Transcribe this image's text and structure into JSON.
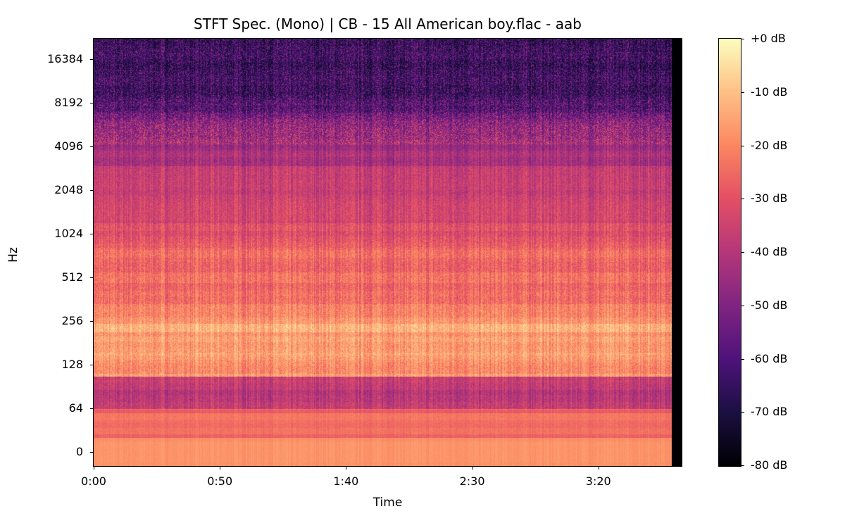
{
  "chart_data": {
    "type": "heatmap",
    "title": "STFT Spec. (Mono) | CB - 15 All American boy.flac - aab",
    "xlabel": "Time",
    "ylabel": "Hz",
    "x_ticks": [
      {
        "label": "0:00",
        "seconds": 0
      },
      {
        "label": "0:50",
        "seconds": 50
      },
      {
        "label": "1:40",
        "seconds": 100
      },
      {
        "label": "2:30",
        "seconds": 150
      },
      {
        "label": "3:20",
        "seconds": 200
      }
    ],
    "xlim_seconds": [
      0,
      233
    ],
    "audio_end_seconds": 229,
    "y_scale": "log2 (symlog)",
    "y_ticks": [
      "0",
      "64",
      "128",
      "256",
      "512",
      "1024",
      "2048",
      "4096",
      "8192",
      "16384"
    ],
    "colormap": "magma",
    "colorbar": {
      "range_db": [
        -80,
        0
      ],
      "ticks": [
        "+0 dB",
        "-10 dB",
        "-20 dB",
        "-30 dB",
        "-40 dB",
        "-50 dB",
        "-60 dB",
        "-70 dB",
        "-80 dB"
      ]
    },
    "grid": false
  }
}
